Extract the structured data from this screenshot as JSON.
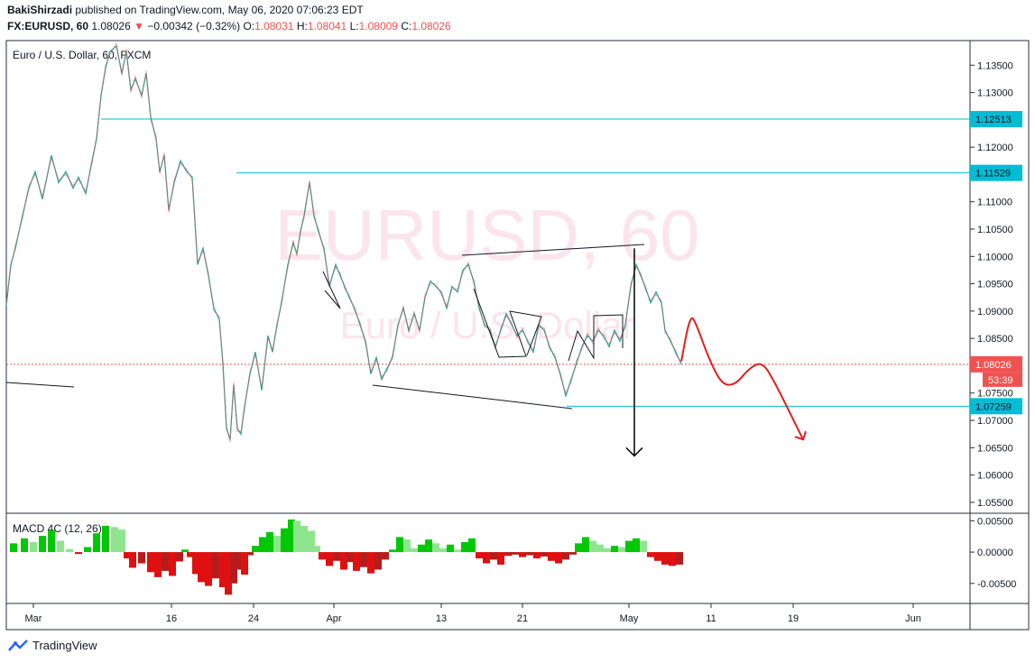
{
  "header": {
    "author": "BakiShirzadi",
    "published_text": "published on TradingView.com, May 06, 2020 07:06:23 EDT",
    "symbol": "FX:EURUSD, 60",
    "last": "1.08026",
    "change_arrow": "▼",
    "change": "−0.00342 (−0.32%)",
    "o_label": "O:",
    "o_value": "1.08031",
    "h_label": "H:",
    "h_value": "1.08041",
    "l_label": "L:",
    "l_value": "1.08009",
    "c_label": "C:",
    "c_value": "1.08026"
  },
  "chart_data": [
    {
      "type": "candlestick",
      "title": "Euro / U.S. Dollar, 60, FXCM",
      "watermark_symbol": "EURUSD, 60",
      "watermark_name": "Euro / U.S. Dollar",
      "y_ticks": [
        "1.13500",
        "1.13000",
        "1.12500",
        "1.12000",
        "1.11500",
        "1.11000",
        "1.10500",
        "1.10000",
        "1.09500",
        "1.09000",
        "1.08500",
        "1.08000",
        "1.07500",
        "1.07000",
        "1.06500",
        "1.06000",
        "1.05500"
      ],
      "y_range": [
        1.053,
        1.1395
      ],
      "x_ticks": [
        "Mar",
        "16",
        "24",
        "Apr",
        "13",
        "21",
        "May",
        "11",
        "19",
        "Jun"
      ],
      "price_series": [
        [
          0,
          1.091
        ],
        [
          5,
          1.0985
        ],
        [
          10,
          1.1015
        ],
        [
          18,
          1.1075
        ],
        [
          25,
          1.1125
        ],
        [
          32,
          1.1155
        ],
        [
          40,
          1.1105
        ],
        [
          50,
          1.1185
        ],
        [
          58,
          1.1135
        ],
        [
          66,
          1.1155
        ],
        [
          74,
          1.1125
        ],
        [
          80,
          1.1145
        ],
        [
          88,
          1.1115
        ],
        [
          95,
          1.1175
        ],
        [
          100,
          1.1215
        ],
        [
          105,
          1.1295
        ],
        [
          110,
          1.1345
        ],
        [
          115,
          1.1375
        ],
        [
          122,
          1.1385
        ],
        [
          128,
          1.1335
        ],
        [
          133,
          1.1375
        ],
        [
          138,
          1.1305
        ],
        [
          143,
          1.1325
        ],
        [
          150,
          1.1295
        ],
        [
          155,
          1.1335
        ],
        [
          160,
          1.1255
        ],
        [
          166,
          1.1215
        ],
        [
          170,
          1.1155
        ],
        [
          175,
          1.1185
        ],
        [
          180,
          1.1085
        ],
        [
          186,
          1.1135
        ],
        [
          193,
          1.1175
        ],
        [
          200,
          1.1155
        ],
        [
          206,
          1.1145
        ],
        [
          212,
          1.0985
        ],
        [
          218,
          1.1015
        ],
        [
          224,
          1.0965
        ],
        [
          230,
          1.0905
        ],
        [
          236,
          1.0885
        ],
        [
          240,
          1.0805
        ],
        [
          244,
          1.0685
        ],
        [
          248,
          1.0665
        ],
        [
          252,
          1.0765
        ],
        [
          256,
          1.0685
        ],
        [
          260,
          1.0675
        ],
        [
          264,
          1.0725
        ],
        [
          270,
          1.0785
        ],
        [
          276,
          1.0825
        ],
        [
          283,
          1.0755
        ],
        [
          290,
          1.0855
        ],
        [
          295,
          1.0825
        ],
        [
          300,
          1.0875
        ],
        [
          305,
          1.0915
        ],
        [
          312,
          1.0985
        ],
        [
          318,
          1.1025
        ],
        [
          322,
          1.1005
        ],
        [
          326,
          1.1045
        ],
        [
          330,
          1.1075
        ],
        [
          336,
          1.1135
        ],
        [
          341,
          1.1075
        ],
        [
          346,
          1.1045
        ],
        [
          352,
          1.1015
        ],
        [
          358,
          1.0945
        ],
        [
          365,
          1.0985
        ],
        [
          370,
          1.0965
        ],
        [
          375,
          1.0945
        ],
        [
          380,
          1.0925
        ],
        [
          386,
          1.0905
        ],
        [
          392,
          1.0875
        ],
        [
          398,
          1.0845
        ],
        [
          404,
          1.0785
        ],
        [
          410,
          1.0815
        ],
        [
          416,
          1.0775
        ],
        [
          422,
          1.0795
        ],
        [
          428,
          1.0815
        ],
        [
          434,
          1.0875
        ],
        [
          440,
          1.0905
        ],
        [
          446,
          1.0865
        ],
        [
          452,
          1.0895
        ],
        [
          458,
          1.0865
        ],
        [
          464,
          1.0925
        ],
        [
          470,
          1.0955
        ],
        [
          476,
          1.0945
        ],
        [
          482,
          1.0935
        ],
        [
          488,
          1.0905
        ],
        [
          494,
          1.0945
        ],
        [
          500,
          1.0935
        ],
        [
          506,
          1.0975
        ],
        [
          512,
          1.0985
        ],
        [
          518,
          1.0955
        ],
        [
          524,
          1.0905
        ],
        [
          530,
          1.0875
        ],
        [
          536,
          1.0865
        ],
        [
          542,
          1.0835
        ],
        [
          548,
          1.0865
        ],
        [
          554,
          1.0895
        ],
        [
          560,
          1.0875
        ],
        [
          566,
          1.0855
        ],
        [
          572,
          1.0865
        ],
        [
          578,
          1.0845
        ],
        [
          584,
          1.0825
        ],
        [
          590,
          1.0875
        ],
        [
          596,
          1.0865
        ],
        [
          602,
          1.0835
        ],
        [
          608,
          1.0815
        ],
        [
          614,
          1.0785
        ],
        [
          620,
          1.0745
        ],
        [
          626,
          1.0775
        ],
        [
          632,
          1.0805
        ],
        [
          638,
          1.0835
        ],
        [
          644,
          1.0855
        ],
        [
          650,
          1.0845
        ],
        [
          656,
          1.0865
        ],
        [
          662,
          1.0855
        ],
        [
          668,
          1.0835
        ],
        [
          674,
          1.0865
        ],
        [
          680,
          1.0845
        ],
        [
          686,
          1.0875
        ],
        [
          692,
          1.0945
        ],
        [
          698,
          1.0985
        ],
        [
          703,
          1.0965
        ],
        [
          708,
          1.0945
        ],
        [
          714,
          1.0915
        ],
        [
          720,
          1.0935
        ],
        [
          726,
          1.0915
        ],
        [
          730,
          1.0865
        ],
        [
          736,
          1.0845
        ],
        [
          742,
          1.0825
        ],
        [
          748,
          1.08026
        ]
      ],
      "price_lines": [
        {
          "value": "1.12513",
          "color": "#00bcd4"
        },
        {
          "value": "1.11529",
          "color": "#00bcd4"
        },
        {
          "value": "1.07259",
          "color": "#00bcd4"
        },
        {
          "value": "1.08026",
          "color": "#ef5350",
          "countdown": "53:39"
        }
      ],
      "projection": {
        "color": "#e0201c",
        "points": [
          [
            755,
            1.0808
          ],
          [
            765,
            1.0895
          ],
          [
            772,
            1.0875
          ],
          [
            785,
            1.0815
          ],
          [
            800,
            1.0765
          ],
          [
            815,
            1.0765
          ],
          [
            830,
            1.0795
          ],
          [
            845,
            1.0808
          ],
          [
            860,
            1.0765
          ],
          [
            875,
            1.0715
          ],
          [
            890,
            1.0665
          ]
        ]
      },
      "target_arrow": {
        "color": "#000000",
        "from": [
          703,
          1.1015
        ],
        "to": [
          703,
          1.0635
        ]
      }
    },
    {
      "type": "histogram",
      "title": "MACD 4C (12, 26)",
      "y_ticks": [
        "0.00500",
        "0.00000",
        "-0.00500"
      ],
      "y_range": [
        -0.0082,
        0.0062
      ],
      "colors": {
        "pos_up": "#00c805",
        "pos_down": "#8ee58e",
        "neg_down": "#e01010",
        "neg_up": "#b71c1c"
      },
      "values": [
        [
          8,
          0.0014
        ],
        [
          20,
          0.0022
        ],
        [
          30,
          0.0016
        ],
        [
          40,
          0.0026
        ],
        [
          50,
          0.0035
        ],
        [
          60,
          0.0018
        ],
        [
          70,
          0.0005
        ],
        [
          80,
          -0.0003
        ],
        [
          90,
          0.0008
        ],
        [
          100,
          0.003
        ],
        [
          110,
          0.0042
        ],
        [
          120,
          0.004
        ],
        [
          128,
          0.0036
        ],
        [
          134,
          -0.001
        ],
        [
          140,
          -0.0025
        ],
        [
          150,
          -0.0018
        ],
        [
          160,
          -0.0032
        ],
        [
          168,
          -0.004
        ],
        [
          176,
          -0.003
        ],
        [
          184,
          -0.0038
        ],
        [
          192,
          -0.0015
        ],
        [
          198,
          0.0004
        ],
        [
          204,
          -0.0008
        ],
        [
          210,
          -0.0035
        ],
        [
          216,
          -0.0048
        ],
        [
          224,
          -0.0054
        ],
        [
          232,
          -0.0042
        ],
        [
          240,
          -0.0056
        ],
        [
          246,
          -0.0068
        ],
        [
          252,
          -0.005
        ],
        [
          258,
          -0.0028
        ],
        [
          264,
          -0.0036
        ],
        [
          270,
          -0.0005
        ],
        [
          276,
          0.001
        ],
        [
          284,
          0.0024
        ],
        [
          292,
          0.0032
        ],
        [
          300,
          0.0026
        ],
        [
          308,
          0.0038
        ],
        [
          316,
          0.0052
        ],
        [
          322,
          0.005
        ],
        [
          330,
          0.0042
        ],
        [
          338,
          0.0034
        ],
        [
          344,
          0.001
        ],
        [
          350,
          -0.0012
        ],
        [
          358,
          -0.0022
        ],
        [
          366,
          -0.0014
        ],
        [
          374,
          -0.0028
        ],
        [
          380,
          -0.0016
        ],
        [
          388,
          -0.003
        ],
        [
          396,
          -0.0024
        ],
        [
          404,
          -0.0034
        ],
        [
          412,
          -0.0028
        ],
        [
          420,
          -0.0012
        ],
        [
          428,
          0.0004
        ],
        [
          436,
          0.0024
        ],
        [
          444,
          0.002
        ],
        [
          452,
          0.0006
        ],
        [
          460,
          0.0012
        ],
        [
          468,
          0.002
        ],
        [
          476,
          0.0014
        ],
        [
          484,
          0.0006
        ],
        [
          492,
          0.0012
        ],
        [
          500,
          0.0004
        ],
        [
          508,
          0.0016
        ],
        [
          516,
          0.0022
        ],
        [
          524,
          -0.001
        ],
        [
          532,
          -0.0018
        ],
        [
          540,
          -0.0012
        ],
        [
          548,
          -0.002
        ],
        [
          556,
          -0.0006
        ],
        [
          564,
          -0.0004
        ],
        [
          572,
          -0.0008
        ],
        [
          580,
          -0.0005
        ],
        [
          588,
          -0.001
        ],
        [
          596,
          -0.0007
        ],
        [
          604,
          -0.0014
        ],
        [
          612,
          -0.0018
        ],
        [
          620,
          -0.0012
        ],
        [
          628,
          -0.0004
        ],
        [
          634,
          0.0014
        ],
        [
          642,
          0.0024
        ],
        [
          650,
          0.0018
        ],
        [
          658,
          0.0012
        ],
        [
          666,
          0.0006
        ],
        [
          674,
          0.001
        ],
        [
          682,
          0.0008
        ],
        [
          690,
          0.0018
        ],
        [
          698,
          0.0022
        ],
        [
          706,
          0.0018
        ],
        [
          714,
          -0.0008
        ],
        [
          722,
          -0.0014
        ],
        [
          730,
          -0.002
        ],
        [
          738,
          -0.0022
        ],
        [
          746,
          -0.002
        ]
      ]
    }
  ],
  "footer": {
    "brand": "TradingView"
  }
}
